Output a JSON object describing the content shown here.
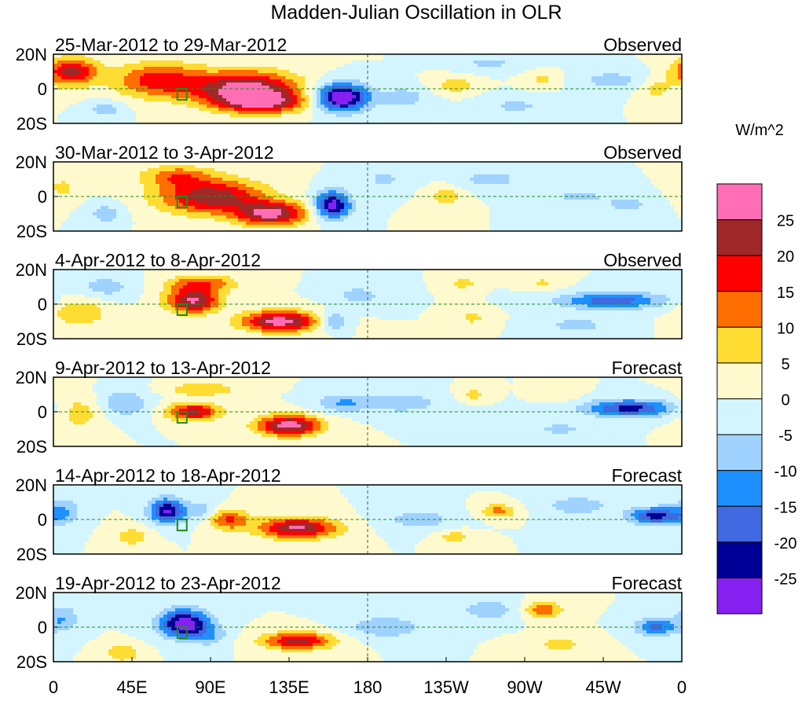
{
  "chart_data": {
    "type": "heatmap",
    "title": "Madden-Julian Oscillation in OLR",
    "units": "W/m^2",
    "xlabel": "",
    "ylabel": "",
    "x_ticks": [
      "0",
      "45E",
      "90E",
      "135E",
      "180",
      "135W",
      "90W",
      "45W",
      "0"
    ],
    "x_range_deg_east": [
      0,
      360
    ],
    "y_ticks": [
      "20N",
      "0",
      "20S"
    ],
    "y_range_deg": [
      -20,
      20
    ],
    "levels": [
      -25,
      -20,
      -15,
      -10,
      -5,
      0,
      5,
      10,
      15,
      20,
      25
    ],
    "level_labels": [
      "25",
      "20",
      "15",
      "10",
      "5",
      "0",
      "-5",
      "-10",
      "-15",
      "-20",
      "-25"
    ],
    "colors": [
      "#8620f0",
      "#000096",
      "#4169e1",
      "#1e90ff",
      "#a0d2ff",
      "#d2f5ff",
      "#fffacd",
      "#ffdc32",
      "#ff6e00",
      "#ff0000",
      "#a02828",
      "#ff6eb4"
    ],
    "panels": [
      {
        "period": "25-Mar-2012 to 29-Mar-2012",
        "type": "Observed",
        "anomalies": [
          [
            10,
            10,
            22,
            15,
            8
          ],
          [
            60,
            5,
            18,
            25,
            10
          ],
          [
            110,
            0,
            28,
            30,
            10
          ],
          [
            120,
            -8,
            20,
            25,
            6
          ],
          [
            165,
            -5,
            -32,
            15,
            8
          ],
          [
            30,
            -12,
            -8,
            10,
            5
          ],
          [
            200,
            -5,
            -8,
            15,
            6
          ],
          [
            230,
            2,
            8,
            12,
            5
          ],
          [
            265,
            -10,
            -6,
            20,
            6
          ],
          [
            280,
            5,
            6,
            10,
            5
          ],
          [
            320,
            5,
            -7,
            20,
            6
          ],
          [
            345,
            0,
            7,
            10,
            6
          ],
          [
            250,
            15,
            -6,
            20,
            5
          ]
        ]
      },
      {
        "period": "30-Mar-2012 to 3-Apr-2012",
        "type": "Observed",
        "anomalies": [
          [
            5,
            5,
            6,
            10,
            8
          ],
          [
            30,
            -10,
            -8,
            10,
            6
          ],
          [
            90,
            0,
            24,
            30,
            10
          ],
          [
            125,
            -10,
            26,
            20,
            7
          ],
          [
            160,
            -5,
            -28,
            10,
            8
          ],
          [
            190,
            10,
            -6,
            15,
            6
          ],
          [
            225,
            0,
            8,
            10,
            6
          ],
          [
            250,
            10,
            -7,
            20,
            6
          ],
          [
            300,
            0,
            -6,
            20,
            6
          ],
          [
            330,
            -5,
            -6,
            15,
            6
          ],
          [
            70,
            12,
            12,
            20,
            6
          ]
        ]
      },
      {
        "period": "4-Apr-2012 to 8-Apr-2012",
        "type": "Observed",
        "anomalies": [
          [
            15,
            -5,
            10,
            15,
            8
          ],
          [
            30,
            10,
            -8,
            15,
            6
          ],
          [
            80,
            2,
            26,
            15,
            7
          ],
          [
            85,
            12,
            14,
            20,
            5
          ],
          [
            130,
            -10,
            28,
            22,
            6
          ],
          [
            160,
            -10,
            -14,
            8,
            5
          ],
          [
            175,
            5,
            -7,
            15,
            6
          ],
          [
            235,
            12,
            7,
            8,
            4
          ],
          [
            240,
            -8,
            6,
            10,
            5
          ],
          [
            320,
            2,
            -18,
            30,
            5
          ],
          [
            300,
            -12,
            -7,
            20,
            5
          ],
          [
            280,
            12,
            6,
            10,
            4
          ]
        ]
      },
      {
        "period": "9-Apr-2012 to 13-Apr-2012",
        "type": "Forecast",
        "anomalies": [
          [
            15,
            0,
            8,
            15,
            10
          ],
          [
            40,
            5,
            -10,
            15,
            8
          ],
          [
            80,
            0,
            22,
            15,
            5
          ],
          [
            85,
            13,
            10,
            20,
            4
          ],
          [
            135,
            -8,
            28,
            18,
            6
          ],
          [
            165,
            5,
            -10,
            15,
            5
          ],
          [
            200,
            5,
            -8,
            25,
            6
          ],
          [
            240,
            10,
            7,
            8,
            4
          ],
          [
            330,
            2,
            -22,
            25,
            5
          ],
          [
            290,
            -10,
            -6,
            20,
            5
          ],
          [
            290,
            10,
            5,
            10,
            4
          ]
        ]
      },
      {
        "period": "14-Apr-2012 to 18-Apr-2012",
        "type": "Forecast",
        "anomalies": [
          [
            5,
            5,
            -10,
            10,
            8
          ],
          [
            45,
            -10,
            8,
            10,
            6
          ],
          [
            65,
            5,
            -26,
            10,
            7
          ],
          [
            85,
            5,
            -8,
            10,
            6
          ],
          [
            100,
            0,
            16,
            12,
            6
          ],
          [
            140,
            -5,
            26,
            22,
            6
          ],
          [
            210,
            0,
            -8,
            20,
            6
          ],
          [
            255,
            5,
            12,
            10,
            4
          ],
          [
            230,
            -10,
            8,
            10,
            4
          ],
          [
            345,
            2,
            -22,
            15,
            5
          ],
          [
            300,
            8,
            -8,
            20,
            6
          ]
        ]
      },
      {
        "period": "19-Apr-2012 to 23-Apr-2012",
        "type": "Forecast",
        "anomalies": [
          [
            5,
            5,
            -10,
            10,
            8
          ],
          [
            40,
            -15,
            10,
            10,
            5
          ],
          [
            75,
            2,
            -30,
            14,
            8
          ],
          [
            90,
            -5,
            -8,
            10,
            6
          ],
          [
            140,
            -8,
            22,
            20,
            5
          ],
          [
            190,
            0,
            -10,
            20,
            6
          ],
          [
            250,
            10,
            -8,
            20,
            6
          ],
          [
            280,
            10,
            14,
            12,
            5
          ],
          [
            290,
            -10,
            7,
            15,
            5
          ],
          [
            345,
            0,
            -16,
            12,
            5
          ]
        ]
      }
    ]
  }
}
